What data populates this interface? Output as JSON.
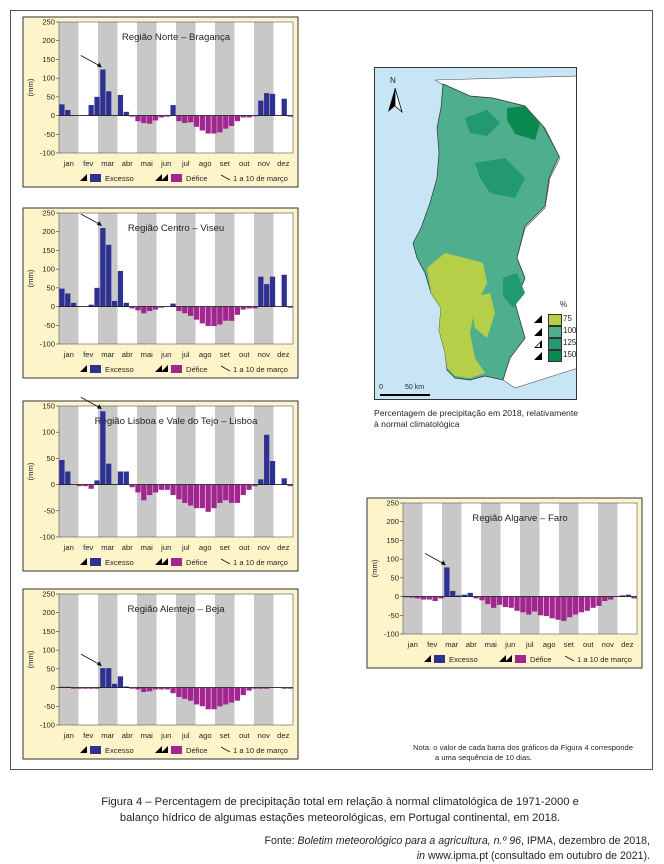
{
  "months": [
    "jan",
    "fev",
    "mar",
    "abr",
    "mai",
    "jun",
    "jul",
    "ago",
    "set",
    "out",
    "nov",
    "dez"
  ],
  "legend": {
    "excess": "Excesso",
    "deficit": "Défice",
    "arrow_note": "1 a 10 de março"
  },
  "colors": {
    "excess": "#2e3192",
    "deficit": "#a2268f",
    "panel_bg": "#fdf5c9",
    "stripe": "#c8c8c8",
    "map_sea": "#c7e5f5",
    "class_75": "#b5cf49",
    "class_100": "#4fae8d",
    "class_125": "#229970",
    "class_150": "#0a8a4e"
  },
  "chart_data": [
    {
      "type": "bar",
      "title": "Região Norte – Bragança",
      "ylabel": "(mm)",
      "ylim": [
        -100,
        250
      ],
      "yticks": [
        250,
        200,
        150,
        100,
        50,
        0,
        -50,
        -100
      ],
      "values": [
        30,
        15,
        0,
        0,
        0,
        28,
        50,
        123,
        65,
        0,
        55,
        10,
        -3,
        -15,
        -20,
        -22,
        -13,
        -5,
        -3,
        28,
        -15,
        -20,
        -18,
        -30,
        -40,
        -48,
        -48,
        -45,
        -35,
        -28,
        -15,
        -5,
        -5,
        -2,
        40,
        60,
        58,
        0,
        45,
        -3
      ],
      "arrow_index": 7
    },
    {
      "type": "bar",
      "title": "Região Centro – Viseu",
      "ylabel": "(mm)",
      "ylim": [
        -100,
        250
      ],
      "yticks": [
        250,
        200,
        150,
        100,
        50,
        0,
        -50,
        -100
      ],
      "values": [
        48,
        35,
        10,
        0,
        0,
        5,
        50,
        210,
        165,
        15,
        95,
        10,
        -5,
        -10,
        -18,
        -12,
        -8,
        -3,
        0,
        8,
        -12,
        -18,
        -25,
        -35,
        -45,
        -52,
        -52,
        -48,
        -38,
        -38,
        -22,
        -8,
        -5,
        -5,
        80,
        60,
        80,
        0,
        85,
        -3
      ],
      "arrow_index": 7
    },
    {
      "type": "bar",
      "title": "Região Lisboa e Vale do Tejo – Lisboa",
      "ylabel": "(mm)",
      "ylim": [
        -100,
        150
      ],
      "yticks": [
        150,
        100,
        50,
        0,
        -50,
        -100
      ],
      "values": [
        47,
        25,
        0,
        -3,
        -3,
        -8,
        8,
        140,
        40,
        0,
        25,
        25,
        -5,
        -15,
        -30,
        -20,
        -15,
        -10,
        -10,
        -20,
        -28,
        -35,
        -40,
        -45,
        -45,
        -52,
        -45,
        -35,
        -30,
        -35,
        -35,
        -20,
        -10,
        -3,
        10,
        95,
        45,
        0,
        12,
        -3
      ],
      "arrow_index": 7
    },
    {
      "type": "bar",
      "title": "Região Alentejo – Beja",
      "ylabel": "(mm)",
      "ylim": [
        -100,
        250
      ],
      "yticks": [
        250,
        200,
        150,
        100,
        50,
        0,
        -50,
        -100
      ],
      "values": [
        2,
        2,
        -3,
        -3,
        -3,
        -3,
        -3,
        52,
        52,
        10,
        30,
        3,
        -3,
        -5,
        -12,
        -10,
        -5,
        -5,
        -5,
        -15,
        -25,
        -30,
        -35,
        -45,
        -50,
        -58,
        -58,
        -50,
        -45,
        -40,
        -35,
        -20,
        -8,
        -3,
        -3,
        -3,
        0,
        0,
        -3,
        -3
      ],
      "arrow_index": 7
    },
    {
      "type": "bar",
      "title": "Região Algarve – Faro",
      "ylabel": "(mm)",
      "ylim": [
        -100,
        250
      ],
      "yticks": [
        250,
        200,
        150,
        100,
        50,
        0,
        -50,
        -100
      ],
      "values": [
        -2,
        -3,
        -5,
        -8,
        -8,
        -12,
        -5,
        78,
        15,
        3,
        5,
        10,
        -5,
        -10,
        -20,
        -30,
        -22,
        -28,
        -30,
        -38,
        -42,
        -48,
        -40,
        -50,
        -52,
        -58,
        -62,
        -65,
        -55,
        -48,
        -42,
        -38,
        -30,
        -25,
        -12,
        -8,
        0,
        3,
        5,
        -5
      ],
      "arrow_index": 7
    }
  ],
  "map": {
    "north_label": "N",
    "legend_title": "%",
    "classes": [
      "75",
      "100",
      "125",
      "150"
    ],
    "scale_zero": "0",
    "scale_label": "50 km",
    "caption_line1": "Percentagem de precipitação em 2018, relativamente",
    "caption_line2": "à normal climatológica"
  },
  "note": {
    "line1": "Nota: o valor de cada barra dos gráficos da Figura 4 corresponde",
    "line2": "a uma sequência de 10 dias."
  },
  "caption": {
    "line1": "Figura 4 – Percentagem de precipitação total em relação à normal climatológica de 1971-2000 e",
    "line2": "balanço hídrico de algumas estações meteorológicas, em Portugal continental, em 2018."
  },
  "source": {
    "prefix": "Fonte: ",
    "title": "Boletim meteorológico para a agricultura, n.º 96",
    "suffix": ", IPMA, dezembro de 2018,",
    "in_word": "in",
    "line2_rest": " www.ipma.pt (consultado em outubro de 2021)."
  }
}
